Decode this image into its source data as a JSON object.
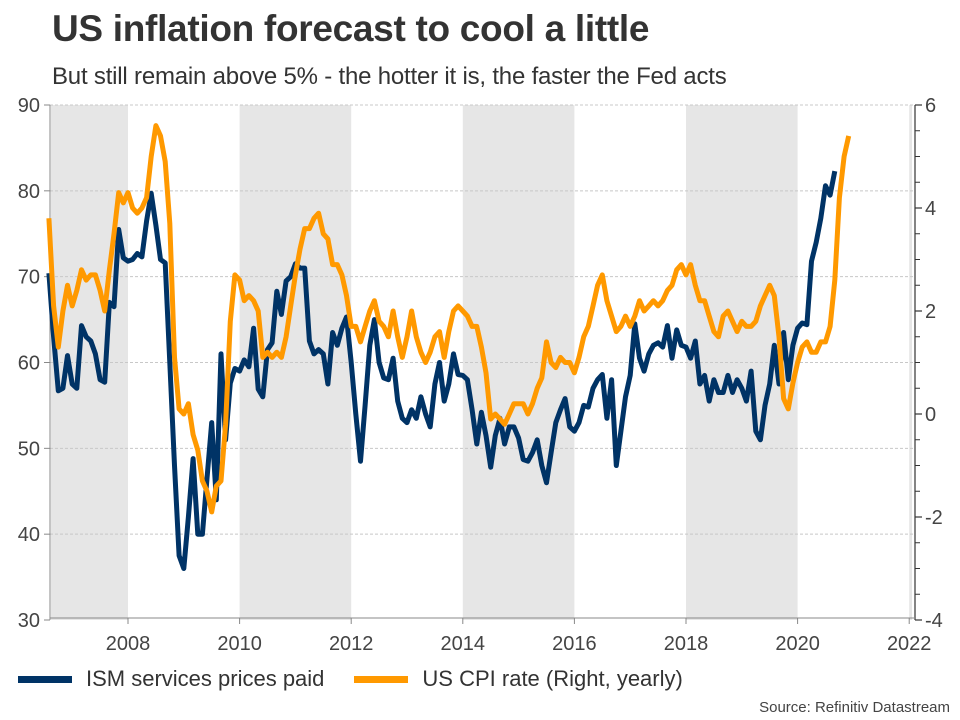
{
  "chart_data": {
    "type": "line",
    "title": "US inflation forecast to cool a little",
    "subtitle": "But still remain above 5% - the hotter it is, the faster the Fed acts",
    "source": "Source: Refinitiv Datastream",
    "xlabel": "",
    "ylabel_left": "",
    "ylabel_right": "",
    "x_start": "2006-08",
    "x_range": [
      2006.62,
      2022.05
    ],
    "x_ticks": [
      2008,
      2010,
      2012,
      2014,
      2016,
      2018,
      2020,
      2022
    ],
    "x_tick_labels": [
      "2008",
      "2010",
      "2012",
      "2014",
      "2016",
      "2018",
      "2020",
      "2022"
    ],
    "ylim_left": [
      30,
      90
    ],
    "y_ticks_left": [
      30,
      40,
      50,
      60,
      70,
      80,
      90
    ],
    "y_tick_labels_left": [
      "30",
      "40",
      "50",
      "60",
      "70",
      "80",
      "90"
    ],
    "ylim_right": [
      -4,
      6
    ],
    "y_ticks_right": [
      -4,
      -2,
      0,
      2,
      4,
      6
    ],
    "y_tick_labels_right": [
      "-4",
      "-2",
      "0",
      "2",
      "4",
      "6"
    ],
    "grid": "horizontal dashed",
    "shaded_periods": [
      [
        2006.62,
        2008
      ],
      [
        2010,
        2012
      ],
      [
        2014,
        2016
      ],
      [
        2018,
        2020
      ],
      [
        2022,
        2022.05
      ]
    ],
    "legend_position": "bottom-left",
    "series": [
      {
        "name": "ISM services prices paid",
        "axis": "left",
        "color": "#003366",
        "start": "2006-08",
        "values": [
          70.4,
          63.0,
          56.7,
          57.0,
          60.8,
          57.5,
          57.0,
          64.3,
          63.0,
          62.5,
          61.0,
          58.0,
          57.7,
          67.0,
          66.5,
          75.5,
          72.2,
          71.8,
          72.0,
          72.7,
          72.3,
          76.5,
          79.7,
          76.0,
          72.0,
          71.6,
          60.0,
          48.0,
          37.5,
          36.0,
          42.0,
          48.8,
          40.0,
          40.0,
          46.5,
          53.0,
          44.0,
          61.0,
          51.0,
          57.6,
          59.3,
          59.0,
          60.3,
          59.5,
          64.0,
          56.9,
          56.0,
          61.5,
          62.3,
          68.3,
          65.6,
          69.5,
          70.0,
          71.5,
          71.0,
          71.0,
          62.5,
          61.0,
          61.5,
          61.0,
          57.5,
          63.5,
          62.0,
          64.0,
          65.3,
          60.0,
          54.0,
          48.5,
          55.0,
          62.0,
          65.0,
          60.0,
          58.2,
          58.0,
          60.5,
          55.5,
          53.5,
          53.0,
          54.5,
          53.5,
          56.0,
          54.0,
          52.5,
          57.5,
          60.0,
          55.5,
          57.5,
          61.0,
          58.6,
          58.5,
          58.0,
          54.5,
          50.5,
          54.2,
          51.5,
          47.8,
          51.5,
          53.5,
          50.5,
          52.5,
          52.5,
          51.2,
          48.7,
          48.5,
          49.5,
          51.0,
          48.0,
          46.0,
          49.5,
          53.0,
          54.5,
          55.8,
          52.5,
          52.0,
          53.0,
          55.0,
          54.8,
          57.0,
          58.0,
          58.6,
          53.5,
          58.0,
          48.0,
          52.0,
          56.0,
          58.5,
          64.5,
          60.5,
          59.0,
          61.0,
          62.0,
          62.3,
          61.8,
          64.3,
          60.5,
          63.8,
          62.0,
          61.8,
          60.5,
          62.5,
          57.5,
          58.5,
          55.5,
          58.0,
          56.5,
          56.5,
          58.5,
          56.5,
          58.0,
          57.0,
          55.5,
          59.0,
          52.0,
          51.0,
          55.0,
          57.5,
          62.0,
          57.5,
          63.5,
          58.0,
          62.0,
          64.0,
          64.6,
          64.4,
          71.8,
          74.0,
          76.8,
          80.6,
          79.5,
          82.3
        ]
      },
      {
        "name": "US CPI rate (Right, yearly)",
        "axis": "right",
        "color": "#FF9900",
        "start": "2006-08",
        "values": [
          3.8,
          2.1,
          1.3,
          2.0,
          2.5,
          2.1,
          2.4,
          2.8,
          2.6,
          2.7,
          2.7,
          2.4,
          2.0,
          2.8,
          3.5,
          4.3,
          4.1,
          4.3,
          4.0,
          3.9,
          4.0,
          4.2,
          5.0,
          5.6,
          5.4,
          4.9,
          3.7,
          1.1,
          0.1,
          0.0,
          0.2,
          -0.4,
          -0.7,
          -1.3,
          -1.5,
          -1.9,
          -1.4,
          -1.3,
          -0.2,
          1.8,
          2.7,
          2.6,
          2.2,
          2.3,
          2.2,
          2.0,
          1.1,
          1.2,
          1.1,
          1.2,
          1.1,
          1.5,
          2.1,
          2.7,
          3.2,
          3.6,
          3.6,
          3.8,
          3.9,
          3.5,
          3.4,
          2.9,
          2.9,
          2.7,
          2.3,
          1.7,
          1.7,
          1.4,
          1.7,
          2.0,
          2.2,
          1.8,
          1.7,
          1.5,
          2.0,
          1.5,
          1.1,
          1.5,
          2.0,
          1.5,
          1.2,
          1.0,
          1.2,
          1.5,
          1.6,
          1.1,
          1.6,
          2.0,
          2.1,
          2.0,
          1.9,
          1.7,
          1.7,
          1.3,
          0.8,
          -0.1,
          0.0,
          -0.1,
          -0.2,
          0.0,
          0.2,
          0.2,
          0.2,
          0.0,
          0.2,
          0.5,
          0.7,
          1.4,
          1.0,
          0.9,
          1.1,
          1.0,
          1.0,
          0.8,
          1.1,
          1.5,
          1.7,
          2.1,
          2.5,
          2.7,
          2.2,
          1.9,
          1.6,
          1.7,
          1.9,
          1.7,
          1.9,
          2.2,
          2.0,
          2.1,
          2.2,
          2.1,
          2.2,
          2.4,
          2.5,
          2.8,
          2.9,
          2.7,
          2.9,
          2.5,
          2.2,
          2.2,
          1.9,
          1.6,
          1.5,
          1.9,
          2.0,
          1.8,
          1.6,
          1.8,
          1.7,
          1.7,
          1.8,
          2.1,
          2.3,
          2.5,
          2.3,
          1.5,
          0.3,
          0.1,
          0.6,
          1.0,
          1.3,
          1.4,
          1.2,
          1.2,
          1.4,
          1.4,
          1.7,
          2.6,
          4.2,
          5.0,
          5.4
        ]
      }
    ]
  }
}
